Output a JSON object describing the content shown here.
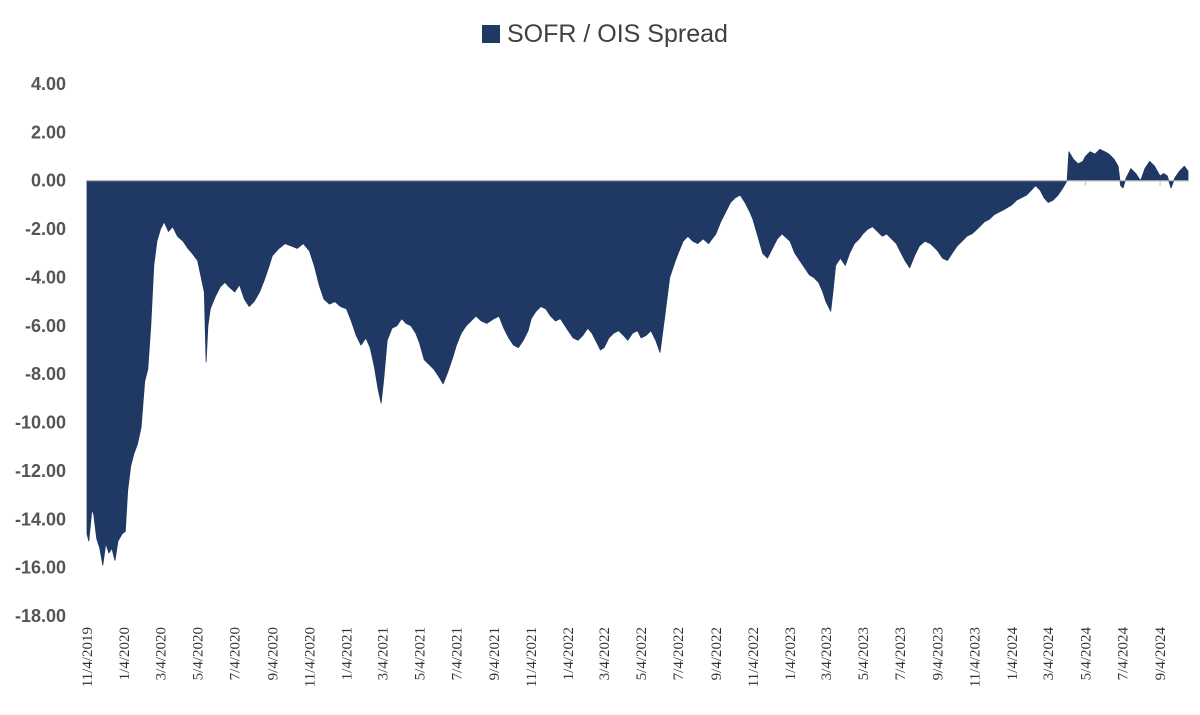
{
  "chart_data": {
    "type": "area",
    "series": [
      {
        "name": "SOFR / OIS Spread",
        "color": "#1f3864",
        "points": [
          [
            "2019-11-04",
            -14.6
          ],
          [
            "2019-11-07",
            -14.9
          ],
          [
            "2019-11-12",
            -13.6
          ],
          [
            "2019-11-15",
            -13.8
          ],
          [
            "2019-11-20",
            -14.8
          ],
          [
            "2019-11-25",
            -15.2
          ],
          [
            "2019-11-30",
            -15.9
          ],
          [
            "2019-12-05",
            -15.0
          ],
          [
            "2019-12-10",
            -15.4
          ],
          [
            "2019-12-15",
            -15.2
          ],
          [
            "2019-12-20",
            -15.7
          ],
          [
            "2019-12-25",
            -14.9
          ],
          [
            "2020-01-01",
            -14.6
          ],
          [
            "2020-01-06",
            -14.5
          ],
          [
            "2020-01-10",
            -12.8
          ],
          [
            "2020-01-15",
            -11.8
          ],
          [
            "2020-01-20",
            -11.3
          ],
          [
            "2020-01-26",
            -10.9
          ],
          [
            "2020-02-01",
            -10.2
          ],
          [
            "2020-02-07",
            -8.3
          ],
          [
            "2020-02-12",
            -7.8
          ],
          [
            "2020-02-17",
            -6.0
          ],
          [
            "2020-02-22",
            -3.5
          ],
          [
            "2020-02-27",
            -2.5
          ],
          [
            "2020-03-04",
            -2.0
          ],
          [
            "2020-03-10",
            -1.7
          ],
          [
            "2020-03-17",
            -2.1
          ],
          [
            "2020-03-24",
            -1.9
          ],
          [
            "2020-04-01",
            -2.3
          ],
          [
            "2020-04-10",
            -2.5
          ],
          [
            "2020-04-18",
            -2.8
          ],
          [
            "2020-04-25",
            -3.0
          ],
          [
            "2020-05-04",
            -3.3
          ],
          [
            "2020-05-10",
            -4.0
          ],
          [
            "2020-05-15",
            -4.6
          ],
          [
            "2020-05-18",
            -7.5
          ],
          [
            "2020-05-21",
            -6.0
          ],
          [
            "2020-05-25",
            -5.3
          ],
          [
            "2020-06-02",
            -4.8
          ],
          [
            "2020-06-10",
            -4.4
          ],
          [
            "2020-06-18",
            -4.2
          ],
          [
            "2020-06-25",
            -4.4
          ],
          [
            "2020-07-04",
            -4.6
          ],
          [
            "2020-07-12",
            -4.3
          ],
          [
            "2020-07-20",
            -4.9
          ],
          [
            "2020-07-28",
            -5.2
          ],
          [
            "2020-08-05",
            -5.0
          ],
          [
            "2020-08-14",
            -4.6
          ],
          [
            "2020-08-22",
            -4.1
          ],
          [
            "2020-08-30",
            -3.5
          ],
          [
            "2020-09-04",
            -3.1
          ],
          [
            "2020-09-15",
            -2.8
          ],
          [
            "2020-09-25",
            -2.6
          ],
          [
            "2020-10-05",
            -2.7
          ],
          [
            "2020-10-15",
            -2.8
          ],
          [
            "2020-10-25",
            -2.6
          ],
          [
            "2020-11-04",
            -2.9
          ],
          [
            "2020-11-12",
            -3.5
          ],
          [
            "2020-11-20",
            -4.3
          ],
          [
            "2020-11-28",
            -4.9
          ],
          [
            "2020-12-07",
            -5.1
          ],
          [
            "2020-12-16",
            -5.0
          ],
          [
            "2020-12-25",
            -5.2
          ],
          [
            "2021-01-04",
            -5.3
          ],
          [
            "2021-01-12",
            -5.8
          ],
          [
            "2021-01-20",
            -6.4
          ],
          [
            "2021-01-28",
            -6.8
          ],
          [
            "2021-02-05",
            -6.5
          ],
          [
            "2021-02-12",
            -6.9
          ],
          [
            "2021-02-19",
            -7.7
          ],
          [
            "2021-02-25",
            -8.6
          ],
          [
            "2021-03-02",
            -9.2
          ],
          [
            "2021-03-06",
            -8.3
          ],
          [
            "2021-03-12",
            -6.6
          ],
          [
            "2021-03-20",
            -6.1
          ],
          [
            "2021-03-28",
            -6.0
          ],
          [
            "2021-04-05",
            -5.7
          ],
          [
            "2021-04-12",
            -5.9
          ],
          [
            "2021-04-20",
            -6.0
          ],
          [
            "2021-04-28",
            -6.3
          ],
          [
            "2021-05-04",
            -6.7
          ],
          [
            "2021-05-12",
            -7.4
          ],
          [
            "2021-05-20",
            -7.6
          ],
          [
            "2021-05-28",
            -7.8
          ],
          [
            "2021-06-05",
            -8.1
          ],
          [
            "2021-06-12",
            -8.4
          ],
          [
            "2021-06-20",
            -7.9
          ],
          [
            "2021-06-28",
            -7.3
          ],
          [
            "2021-07-04",
            -6.8
          ],
          [
            "2021-07-12",
            -6.3
          ],
          [
            "2021-07-20",
            -6.0
          ],
          [
            "2021-07-28",
            -5.8
          ],
          [
            "2021-08-05",
            -5.6
          ],
          [
            "2021-08-14",
            -5.8
          ],
          [
            "2021-08-23",
            -5.9
          ],
          [
            "2021-09-04",
            -5.7
          ],
          [
            "2021-09-12",
            -5.6
          ],
          [
            "2021-09-20",
            -6.1
          ],
          [
            "2021-09-28",
            -6.5
          ],
          [
            "2021-10-06",
            -6.8
          ],
          [
            "2021-10-14",
            -6.9
          ],
          [
            "2021-10-22",
            -6.6
          ],
          [
            "2021-10-30",
            -6.2
          ],
          [
            "2021-11-04",
            -5.7
          ],
          [
            "2021-11-12",
            -5.4
          ],
          [
            "2021-11-20",
            -5.2
          ],
          [
            "2021-11-28",
            -5.3
          ],
          [
            "2021-12-06",
            -5.6
          ],
          [
            "2021-12-14",
            -5.8
          ],
          [
            "2021-12-22",
            -5.7
          ],
          [
            "2022-01-04",
            -6.2
          ],
          [
            "2022-01-12",
            -6.5
          ],
          [
            "2022-01-20",
            -6.6
          ],
          [
            "2022-01-28",
            -6.4
          ],
          [
            "2022-02-05",
            -6.1
          ],
          [
            "2022-02-12",
            -6.3
          ],
          [
            "2022-02-20",
            -6.7
          ],
          [
            "2022-02-26",
            -7.0
          ],
          [
            "2022-03-04",
            -6.9
          ],
          [
            "2022-03-12",
            -6.5
          ],
          [
            "2022-03-20",
            -6.3
          ],
          [
            "2022-03-28",
            -6.2
          ],
          [
            "2022-04-05",
            -6.4
          ],
          [
            "2022-04-12",
            -6.6
          ],
          [
            "2022-04-20",
            -6.3
          ],
          [
            "2022-04-28",
            -6.2
          ],
          [
            "2022-05-04",
            -6.5
          ],
          [
            "2022-05-12",
            -6.4
          ],
          [
            "2022-05-20",
            -6.2
          ],
          [
            "2022-05-28",
            -6.6
          ],
          [
            "2022-06-04",
            -7.1
          ],
          [
            "2022-06-12",
            -5.6
          ],
          [
            "2022-06-20",
            -4.0
          ],
          [
            "2022-06-28",
            -3.4
          ],
          [
            "2022-07-04",
            -3.0
          ],
          [
            "2022-07-12",
            -2.5
          ],
          [
            "2022-07-20",
            -2.3
          ],
          [
            "2022-07-28",
            -2.5
          ],
          [
            "2022-08-05",
            -2.6
          ],
          [
            "2022-08-14",
            -2.4
          ],
          [
            "2022-08-23",
            -2.6
          ],
          [
            "2022-09-04",
            -2.2
          ],
          [
            "2022-09-12",
            -1.7
          ],
          [
            "2022-09-20",
            -1.3
          ],
          [
            "2022-09-28",
            -0.9
          ],
          [
            "2022-10-06",
            -0.7
          ],
          [
            "2022-10-14",
            -0.6
          ],
          [
            "2022-10-22",
            -0.9
          ],
          [
            "2022-10-30",
            -1.3
          ],
          [
            "2022-11-04",
            -1.6
          ],
          [
            "2022-11-12",
            -2.3
          ],
          [
            "2022-11-20",
            -3.0
          ],
          [
            "2022-11-28",
            -3.2
          ],
          [
            "2022-12-06",
            -2.8
          ],
          [
            "2022-12-14",
            -2.4
          ],
          [
            "2022-12-22",
            -2.2
          ],
          [
            "2023-01-04",
            -2.5
          ],
          [
            "2023-01-12",
            -3.0
          ],
          [
            "2023-01-20",
            -3.3
          ],
          [
            "2023-01-28",
            -3.6
          ],
          [
            "2023-02-05",
            -3.9
          ],
          [
            "2023-02-12",
            -4.0
          ],
          [
            "2023-02-20",
            -4.2
          ],
          [
            "2023-02-27",
            -4.6
          ],
          [
            "2023-03-04",
            -5.0
          ],
          [
            "2023-03-12",
            -5.4
          ],
          [
            "2023-03-16",
            -4.5
          ],
          [
            "2023-03-20",
            -3.5
          ],
          [
            "2023-03-28",
            -3.2
          ],
          [
            "2023-04-05",
            -3.5
          ],
          [
            "2023-04-12",
            -3.0
          ],
          [
            "2023-04-20",
            -2.6
          ],
          [
            "2023-04-28",
            -2.4
          ],
          [
            "2023-05-04",
            -2.2
          ],
          [
            "2023-05-12",
            -2.0
          ],
          [
            "2023-05-20",
            -1.9
          ],
          [
            "2023-05-28",
            -2.1
          ],
          [
            "2023-06-05",
            -2.3
          ],
          [
            "2023-06-12",
            -2.2
          ],
          [
            "2023-06-20",
            -2.4
          ],
          [
            "2023-06-28",
            -2.6
          ],
          [
            "2023-07-04",
            -2.9
          ],
          [
            "2023-07-12",
            -3.3
          ],
          [
            "2023-07-20",
            -3.6
          ],
          [
            "2023-07-28",
            -3.1
          ],
          [
            "2023-08-05",
            -2.7
          ],
          [
            "2023-08-14",
            -2.5
          ],
          [
            "2023-08-23",
            -2.6
          ],
          [
            "2023-09-04",
            -2.9
          ],
          [
            "2023-09-12",
            -3.2
          ],
          [
            "2023-09-20",
            -3.3
          ],
          [
            "2023-09-28",
            -3.0
          ],
          [
            "2023-10-06",
            -2.7
          ],
          [
            "2023-10-14",
            -2.5
          ],
          [
            "2023-10-22",
            -2.3
          ],
          [
            "2023-10-30",
            -2.2
          ],
          [
            "2023-11-04",
            -2.1
          ],
          [
            "2023-11-12",
            -1.9
          ],
          [
            "2023-11-20",
            -1.7
          ],
          [
            "2023-11-28",
            -1.6
          ],
          [
            "2023-12-06",
            -1.4
          ],
          [
            "2023-12-14",
            -1.3
          ],
          [
            "2023-12-22",
            -1.2
          ],
          [
            "2024-01-04",
            -1.0
          ],
          [
            "2024-01-12",
            -0.8
          ],
          [
            "2024-01-20",
            -0.7
          ],
          [
            "2024-01-28",
            -0.6
          ],
          [
            "2024-02-05",
            -0.4
          ],
          [
            "2024-02-12",
            -0.2
          ],
          [
            "2024-02-20",
            -0.4
          ],
          [
            "2024-02-26",
            -0.7
          ],
          [
            "2024-03-04",
            -0.9
          ],
          [
            "2024-03-12",
            -0.8
          ],
          [
            "2024-03-20",
            -0.6
          ],
          [
            "2024-03-28",
            -0.3
          ],
          [
            "2024-04-04",
            0.0
          ],
          [
            "2024-04-07",
            1.2
          ],
          [
            "2024-04-14",
            0.9
          ],
          [
            "2024-04-22",
            0.7
          ],
          [
            "2024-04-30",
            0.8
          ],
          [
            "2024-05-04",
            1.0
          ],
          [
            "2024-05-12",
            1.2
          ],
          [
            "2024-05-20",
            1.1
          ],
          [
            "2024-05-28",
            1.3
          ],
          [
            "2024-06-05",
            1.2
          ],
          [
            "2024-06-12",
            1.1
          ],
          [
            "2024-06-20",
            0.9
          ],
          [
            "2024-06-27",
            0.6
          ],
          [
            "2024-07-01",
            -0.2
          ],
          [
            "2024-07-05",
            -0.3
          ],
          [
            "2024-07-10",
            0.1
          ],
          [
            "2024-07-18",
            0.5
          ],
          [
            "2024-07-26",
            0.3
          ],
          [
            "2024-08-03",
            0.0
          ],
          [
            "2024-08-10",
            0.5
          ],
          [
            "2024-08-18",
            0.8
          ],
          [
            "2024-08-26",
            0.6
          ],
          [
            "2024-09-04",
            0.2
          ],
          [
            "2024-09-10",
            0.3
          ],
          [
            "2024-09-16",
            0.2
          ],
          [
            "2024-09-22",
            -0.3
          ],
          [
            "2024-09-28",
            0.1
          ],
          [
            "2024-10-06",
            0.4
          ],
          [
            "2024-10-14",
            0.6
          ],
          [
            "2024-10-20",
            0.4
          ]
        ]
      }
    ],
    "x_ticks": [
      "11/4/2019",
      "1/4/2020",
      "3/4/2020",
      "5/4/2020",
      "7/4/2020",
      "9/4/2020",
      "11/4/2020",
      "1/4/2021",
      "3/4/2021",
      "5/4/2021",
      "7/4/2021",
      "9/4/2021",
      "11/4/2021",
      "1/4/2022",
      "3/4/2022",
      "5/4/2022",
      "7/4/2022",
      "9/4/2022",
      "11/4/2022",
      "1/4/2023",
      "3/4/2023",
      "5/4/2023",
      "7/4/2023",
      "9/4/2023",
      "11/4/2023",
      "1/4/2024",
      "3/4/2024",
      "5/4/2024",
      "7/4/2024",
      "9/4/2024"
    ],
    "y_ticks": [
      "4.00",
      "2.00",
      "0.00",
      "-2.00",
      "-4.00",
      "-6.00",
      "-8.00",
      "-10.00",
      "-12.00",
      "-14.00",
      "-16.00",
      "-18.00"
    ],
    "ylim": [
      -18,
      4
    ],
    "xlim": [
      "2019-11-04",
      "2024-10-20"
    ],
    "grid": false,
    "legend_position": "top-center"
  }
}
